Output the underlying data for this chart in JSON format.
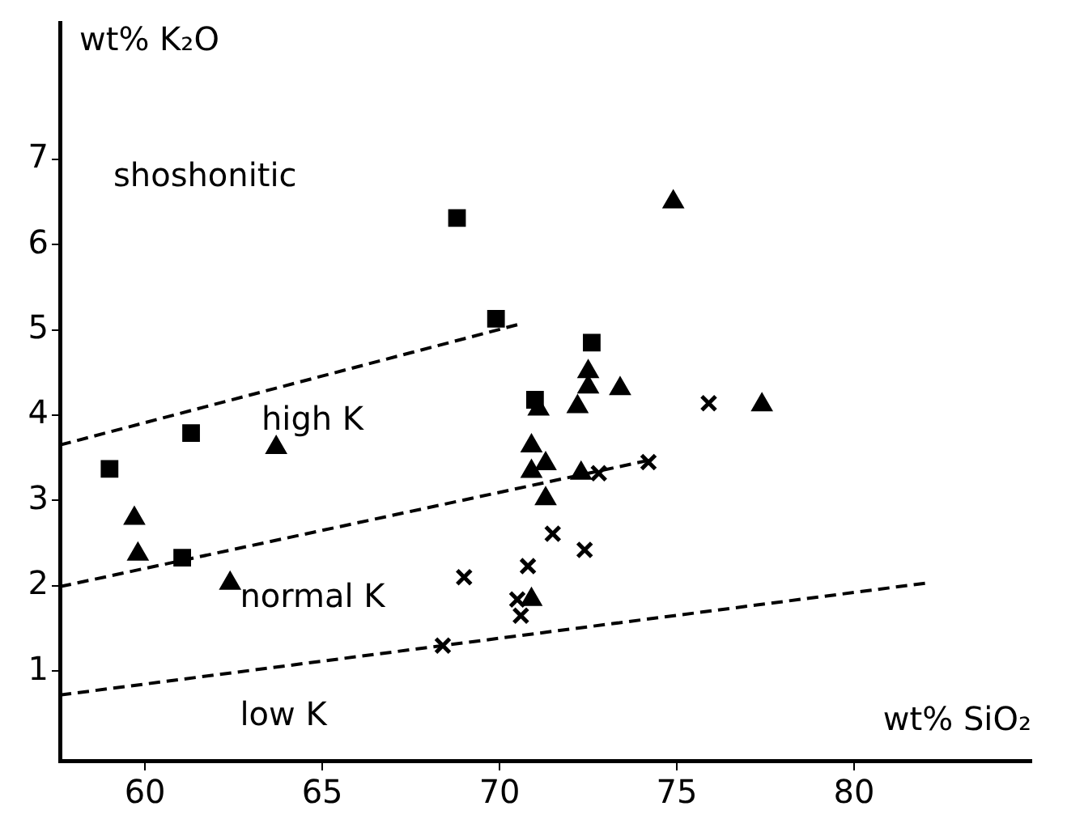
{
  "chart_data": {
    "type": "scatter",
    "xlabel": "wt% SiO₂",
    "ylabel": "wt% K₂O",
    "xlim": [
      57.6,
      85
    ],
    "ylim": [
      -0.05,
      8.6
    ],
    "xticks": [
      60,
      65,
      70,
      75,
      80
    ],
    "yticks": [
      1,
      2,
      3,
      4,
      5,
      6,
      7
    ],
    "grid": false,
    "legend": false,
    "series": [
      {
        "marker": "square",
        "color": "#000000",
        "x": [
          68.8,
          69.9,
          72.6,
          71.0,
          59.0,
          61.3,
          61.05
        ],
        "values": [
          6.31,
          5.13,
          4.85,
          4.18,
          3.37,
          3.79,
          2.33
        ]
      },
      {
        "marker": "triangle",
        "color": "#000000",
        "x": [
          74.9,
          72.5,
          72.5,
          73.4,
          72.2,
          71.1,
          77.4,
          70.9,
          71.3,
          70.9,
          72.3,
          71.3,
          70.9,
          59.7,
          59.8,
          62.4,
          63.7
        ],
        "values": [
          6.5,
          4.51,
          4.33,
          4.31,
          4.1,
          4.07,
          4.12,
          3.64,
          3.43,
          3.34,
          3.32,
          3.02,
          1.84,
          2.79,
          2.37,
          2.03,
          3.62
        ]
      },
      {
        "marker": "cross",
        "color": "#000000",
        "x": [
          75.9,
          74.2,
          72.8,
          71.5,
          72.4,
          70.8,
          70.5,
          70.6,
          69.0,
          68.4
        ],
        "values": [
          4.14,
          3.45,
          3.32,
          2.61,
          2.42,
          2.23,
          1.84,
          1.65,
          2.1,
          1.3
        ]
      },
      {
        "type": "line",
        "line_style": "dashed",
        "marker": "none",
        "color": "#000000",
        "x": [
          57.6,
          70.5
        ],
        "values": [
          3.65,
          5.06
        ]
      },
      {
        "type": "line",
        "line_style": "dashed",
        "marker": "none",
        "color": "#000000",
        "x": [
          57.6,
          74.2
        ],
        "values": [
          1.99,
          3.47
        ]
      },
      {
        "type": "line",
        "line_style": "dashed",
        "marker": "none",
        "color": "#000000",
        "x": [
          57.6,
          82.0
        ],
        "values": [
          0.72,
          2.03
        ]
      }
    ],
    "annotations": [
      "shoshonitic",
      "high K",
      "normal K",
      "low K"
    ]
  }
}
